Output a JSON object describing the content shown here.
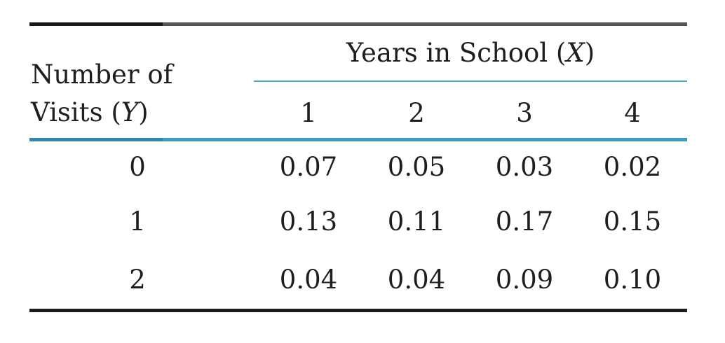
{
  "table": {
    "spanner_label": "Years in School",
    "spanner_var": "X",
    "stub_line1": "Number of",
    "stub_line2": "Visits",
    "stub_var": "Y",
    "columns": [
      "1",
      "2",
      "3",
      "4"
    ],
    "rows": [
      {
        "label": "0",
        "values": [
          "0.07",
          "0.05",
          "0.03",
          "0.02"
        ]
      },
      {
        "label": "1",
        "values": [
          "0.13",
          "0.11",
          "0.17",
          "0.15"
        ]
      },
      {
        "label": "2",
        "values": [
          "0.04",
          "0.04",
          "0.09",
          "0.10"
        ]
      }
    ]
  },
  "colors": {
    "accent": "#3d9cc0",
    "rule_dark": "#1c1c1c"
  }
}
